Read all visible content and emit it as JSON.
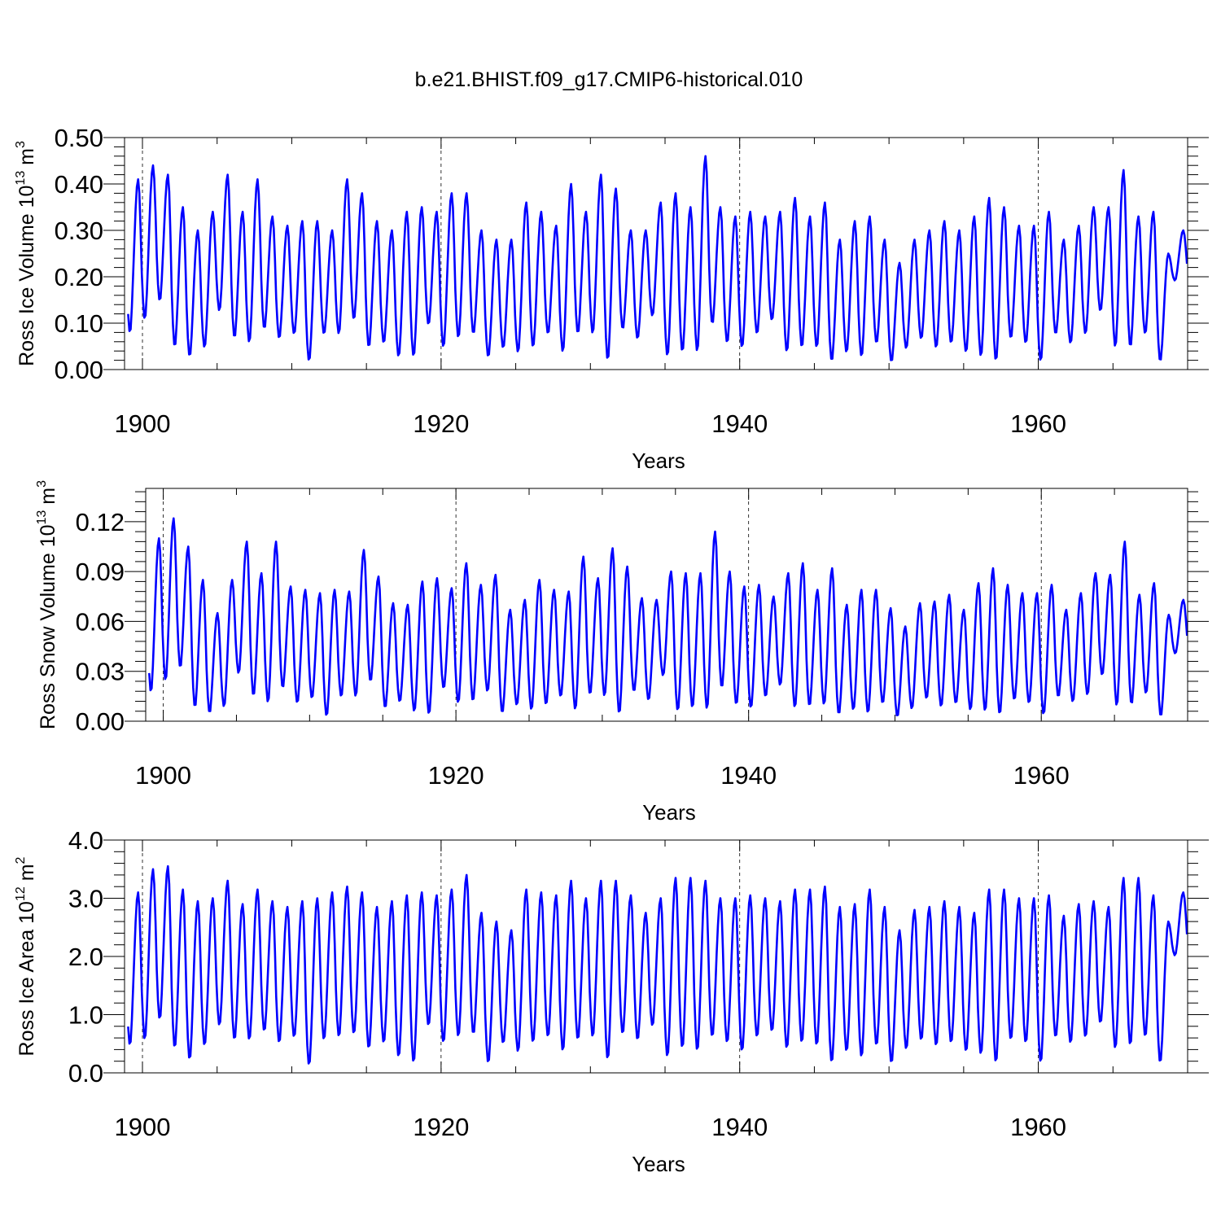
{
  "chart_data": {
    "title": "b.e21.BHIST.f09_g17.CMIP6-historical.010",
    "series_color": "#0000ff",
    "panels": [
      {
        "type": "line",
        "name": "ross-ice-volume",
        "ylabel_main": "Ross Ice Volume 10",
        "ylabel_sup": "13",
        "ylabel_unit": " m",
        "ylabel_unit_sup": "3",
        "xlabel": "Years",
        "xlim": [
          1898.8,
          1970.0
        ],
        "ylim": [
          0,
          0.5
        ],
        "xticks": [
          1900,
          1920,
          1940,
          1960
        ],
        "xtick_labels": [
          "1900",
          "1920",
          "1940",
          "1960"
        ],
        "yticks": [
          0,
          0.1,
          0.2,
          0.3,
          0.4,
          0.5
        ],
        "ytick_labels": [
          "0.00",
          "0.10",
          "0.20",
          "0.30",
          "0.40",
          "0.50"
        ],
        "grid": "dashed vertical at major x ticks",
        "annual_max": [
          0.41,
          0.44,
          0.42,
          0.35,
          0.3,
          0.34,
          0.42,
          0.34,
          0.41,
          0.33,
          0.31,
          0.32,
          0.32,
          0.3,
          0.41,
          0.38,
          0.32,
          0.3,
          0.34,
          0.35,
          0.34,
          0.38,
          0.38,
          0.3,
          0.28,
          0.28,
          0.36,
          0.34,
          0.31,
          0.4,
          0.34,
          0.42,
          0.39,
          0.3,
          0.3,
          0.36,
          0.38,
          0.35,
          0.46,
          0.35,
          0.33,
          0.34,
          0.33,
          0.34,
          0.37,
          0.33,
          0.36,
          0.28,
          0.32,
          0.33,
          0.28,
          0.23,
          0.28,
          0.3,
          0.32,
          0.3,
          0.33,
          0.37,
          0.35,
          0.31,
          0.31,
          0.34,
          0.28,
          0.31,
          0.35,
          0.35,
          0.43,
          0.33,
          0.34,
          0.25,
          0.3
        ],
        "annual_min": [
          0.07,
          0.1,
          0.14,
          0.04,
          0.02,
          0.04,
          0.12,
          0.06,
          0.05,
          0.08,
          0.06,
          0.07,
          0.01,
          0.07,
          0.07,
          0.1,
          0.04,
          0.05,
          0.02,
          0.02,
          0.09,
          0.04,
          0.06,
          0.07,
          0.02,
          0.04,
          0.03,
          0.04,
          0.07,
          0.03,
          0.07,
          0.07,
          0.01,
          0.08,
          0.06,
          0.11,
          0.02,
          0.03,
          0.03,
          0.09,
          0.05,
          0.04,
          0.07,
          0.1,
          0.03,
          0.04,
          0.04,
          0.01,
          0.03,
          0.02,
          0.05,
          0.01,
          0.04,
          0.06,
          0.04,
          0.05,
          0.03,
          0.02,
          0.01,
          0.06,
          0.05,
          0.01,
          0.07,
          0.05,
          0.07,
          0.12,
          0.04,
          0.04,
          0.07,
          0.01,
          0.19
        ]
      },
      {
        "type": "line",
        "name": "ross-snow-volume",
        "ylabel_main": "Ross Snow Volume 10",
        "ylabel_sup": "13",
        "ylabel_unit": " m",
        "ylabel_unit_sup": "3",
        "xlabel": "Years",
        "xlim": [
          1898.8,
          1970.0
        ],
        "ylim": [
          0,
          0.14
        ],
        "xticks": [
          1900,
          1920,
          1940,
          1960
        ],
        "xtick_labels": [
          "1900",
          "1920",
          "1940",
          "1960"
        ],
        "yticks": [
          0,
          0.03,
          0.06,
          0.09,
          0.12
        ],
        "ytick_labels": [
          "0.00",
          "0.03",
          "0.06",
          "0.09",
          "0.12"
        ],
        "grid": "dashed vertical at major x ticks",
        "annual_max": [
          0.11,
          0.122,
          0.105,
          0.085,
          0.065,
          0.085,
          0.108,
          0.089,
          0.108,
          0.081,
          0.079,
          0.077,
          0.079,
          0.078,
          0.103,
          0.087,
          0.071,
          0.07,
          0.084,
          0.086,
          0.08,
          0.095,
          0.082,
          0.088,
          0.067,
          0.073,
          0.085,
          0.079,
          0.078,
          0.099,
          0.086,
          0.104,
          0.093,
          0.074,
          0.073,
          0.09,
          0.089,
          0.089,
          0.114,
          0.09,
          0.081,
          0.082,
          0.075,
          0.089,
          0.095,
          0.079,
          0.092,
          0.07,
          0.079,
          0.079,
          0.068,
          0.057,
          0.071,
          0.072,
          0.076,
          0.067,
          0.083,
          0.092,
          0.082,
          0.077,
          0.077,
          0.082,
          0.067,
          0.077,
          0.089,
          0.088,
          0.108,
          0.076,
          0.083,
          0.064,
          0.073
        ],
        "annual_min": [
          0.015,
          0.022,
          0.03,
          0.006,
          0.003,
          0.007,
          0.027,
          0.013,
          0.009,
          0.018,
          0.009,
          0.012,
          0.001,
          0.013,
          0.013,
          0.022,
          0.006,
          0.01,
          0.004,
          0.002,
          0.018,
          0.009,
          0.01,
          0.016,
          0.003,
          0.008,
          0.005,
          0.008,
          0.013,
          0.005,
          0.014,
          0.013,
          0.002,
          0.016,
          0.011,
          0.026,
          0.004,
          0.006,
          0.005,
          0.018,
          0.008,
          0.006,
          0.013,
          0.02,
          0.006,
          0.007,
          0.008,
          0.002,
          0.005,
          0.003,
          0.009,
          0.001,
          0.006,
          0.012,
          0.007,
          0.009,
          0.005,
          0.004,
          0.002,
          0.011,
          0.009,
          0.002,
          0.013,
          0.01,
          0.014,
          0.026,
          0.007,
          0.008,
          0.015,
          0.001,
          0.04
        ]
      },
      {
        "type": "line",
        "name": "ross-ice-area",
        "ylabel_main": "Ross Ice Area 10",
        "ylabel_sup": "12",
        "ylabel_unit": " m",
        "ylabel_unit_sup": "2",
        "xlabel": "Years",
        "xlim": [
          1898.8,
          1970.0
        ],
        "ylim": [
          0,
          4.0
        ],
        "xticks": [
          1900,
          1920,
          1940,
          1960
        ],
        "xtick_labels": [
          "1900",
          "1920",
          "1940",
          "1960"
        ],
        "yticks": [
          0,
          1.0,
          2.0,
          3.0,
          4.0
        ],
        "ytick_labels": [
          "0.0",
          "1.0",
          "2.0",
          "3.0",
          "4.0"
        ],
        "grid": "dashed vertical at major x ticks",
        "annual_max": [
          3.1,
          3.5,
          3.55,
          3.15,
          2.95,
          3.0,
          3.3,
          2.9,
          3.15,
          2.95,
          2.85,
          2.95,
          3.0,
          3.1,
          3.2,
          3.1,
          2.85,
          2.95,
          3.05,
          3.1,
          3.05,
          3.15,
          3.4,
          2.75,
          2.6,
          2.45,
          3.15,
          3.1,
          3.05,
          3.3,
          3.0,
          3.3,
          3.3,
          3.05,
          2.75,
          3.0,
          3.35,
          3.35,
          3.3,
          3.0,
          3.0,
          3.05,
          3.0,
          2.95,
          3.15,
          3.15,
          3.2,
          2.85,
          2.9,
          3.15,
          2.85,
          2.45,
          2.8,
          2.85,
          2.95,
          2.85,
          2.75,
          3.15,
          3.15,
          3.0,
          3.0,
          3.05,
          2.7,
          2.9,
          2.95,
          2.85,
          3.35,
          3.35,
          3.05,
          2.6,
          3.1
        ],
        "annual_min": [
          0.4,
          0.5,
          0.85,
          0.35,
          0.15,
          0.4,
          0.75,
          0.5,
          0.5,
          0.65,
          0.45,
          0.55,
          0.05,
          0.5,
          0.55,
          0.6,
          0.35,
          0.45,
          0.2,
          0.1,
          0.75,
          0.45,
          0.55,
          0.6,
          0.1,
          0.45,
          0.3,
          0.45,
          0.55,
          0.3,
          0.5,
          0.55,
          0.15,
          0.6,
          0.5,
          0.75,
          0.2,
          0.35,
          0.3,
          0.55,
          0.45,
          0.3,
          0.55,
          0.65,
          0.35,
          0.45,
          0.4,
          0.1,
          0.3,
          0.2,
          0.4,
          0.1,
          0.35,
          0.5,
          0.4,
          0.45,
          0.3,
          0.25,
          0.1,
          0.5,
          0.45,
          0.1,
          0.55,
          0.45,
          0.55,
          0.8,
          0.35,
          0.4,
          0.55,
          0.1,
          2.0
        ]
      }
    ]
  }
}
